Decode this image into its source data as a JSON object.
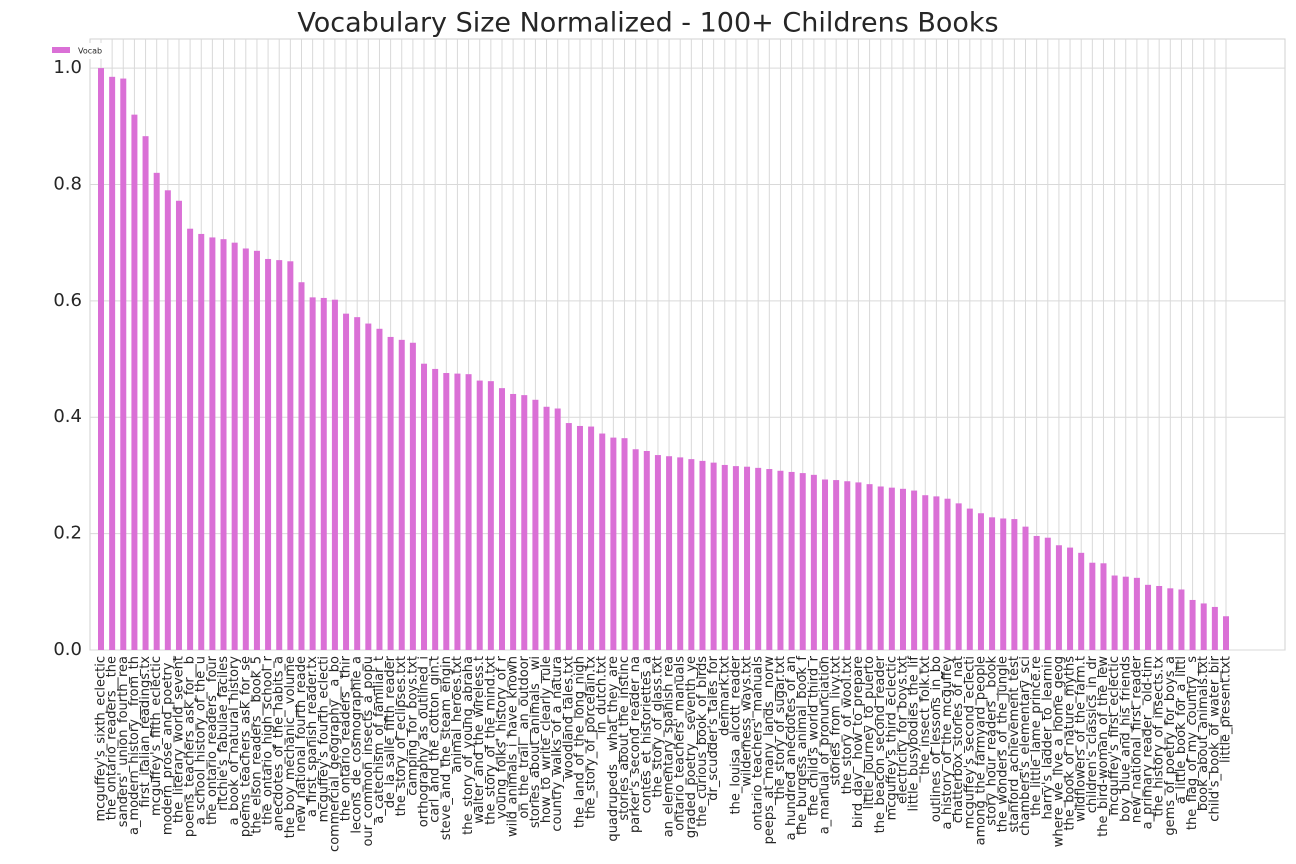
{
  "chart_data": {
    "type": "bar",
    "title": "Vocabulary Size Normalized - 100+ Childrens Books",
    "series": [
      {
        "name": "Vocab",
        "color": "#da70d6",
        "values": [
          1.0,
          0.985,
          0.982,
          0.92,
          0.883,
          0.82,
          0.79,
          0.772,
          0.724,
          0.715,
          0.709,
          0.706,
          0.7,
          0.69,
          0.686,
          0.672,
          0.67,
          0.668,
          0.632,
          0.606,
          0.605,
          0.602,
          0.578,
          0.572,
          0.561,
          0.552,
          0.538,
          0.533,
          0.528,
          0.492,
          0.483,
          0.476,
          0.475,
          0.474,
          0.463,
          0.462,
          0.45,
          0.44,
          0.438,
          0.43,
          0.418,
          0.415,
          0.39,
          0.385,
          0.384,
          0.372,
          0.365,
          0.364,
          0.345,
          0.342,
          0.335,
          0.333,
          0.331,
          0.328,
          0.325,
          0.322,
          0.318,
          0.316,
          0.315,
          0.313,
          0.311,
          0.308,
          0.306,
          0.304,
          0.301,
          0.293,
          0.292,
          0.29,
          0.288,
          0.285,
          0.281,
          0.279,
          0.277,
          0.274,
          0.266,
          0.264,
          0.26,
          0.252,
          0.243,
          0.235,
          0.228,
          0.226,
          0.225,
          0.212,
          0.196,
          0.193,
          0.18,
          0.176,
          0.167,
          0.15,
          0.149,
          0.128,
          0.126,
          0.124,
          0.112,
          0.11,
          0.106,
          0.104,
          0.086,
          0.08,
          0.074,
          0.058
        ]
      }
    ],
    "categories": [
      "mcguffey's_sixth_eclectic",
      "the_ontario_readers__the",
      "sanders'_union_fourth_rea",
      "a_modern_history__from_th",
      "first_italian_readings.tx",
      "mcguffey's_fifth_eclectic",
      "modern_prose_and_poetry_",
      "the_literary_world_sevent",
      "poems_teachers_ask_for__b",
      "a_school_history_of_the_u",
      "the_ontario_readers__four",
      "ritchie's_fabulae_faciles",
      "a_book_of_natural_history",
      "poems_teachers_ask_for_se",
      "the_elson_readers__book_5",
      "the_ontario_high_school_r",
      "anecdotes_of_the_habits_a",
      "the_boy_mechanic__volume",
      "new_national_fourth_reade",
      "a_first_spanish_reader.tx",
      "mcguffey's_fourth_eclecti",
      "commercial_geography__a_bo",
      "the_ontario_readers__thir",
      "lecons_de_cosmographie_a",
      "our_common_insects_a_popu",
      "a_catechism_of_familiar_t",
      "de_la_salle_fifth_reader",
      "the_story_of_eclipses.txt",
      "camping_for_boys.txt",
      "orthography_as_outlined_i",
      "carl_and_the_cotton_gin.t",
      "steve_and_the_steam_engin",
      "animal_heroes.txt",
      "the_story_of_young_abraha",
      "walter_and_the_wireless.t",
      "the_story_of_the_mind.txt",
      "young_folks'_history_of_r",
      "wild_animals_i_have_known",
      "on_the_trail__an_outdoor",
      "stories_about_animals__wi",
      "how_to_write_clearly_rule",
      "country_walks_of_a_natura",
      "woodland_tales.txt",
      "the_land_of_the_long_nigh",
      "the_story_of_porcelain.tx",
      "in_dutch.txt",
      "quadrupeds__what_they_are",
      "stories_about_the_instinc",
      "parker's_second_reader_na",
      "contes_et_historiettes_a",
      "the_story_of_glass.txt",
      "an_elementary_spanish_rea",
      "ontario_teachers'_manuals",
      "graded_poetry__seventh_ye",
      "the_curious_book_of_birds",
      "dr_scudder's_tales_for",
      "denmark.txt",
      "the_louisa_alcott_reader",
      "wilderness_ways.txt",
      "ontario_teachers'_manuals",
      "peeps_at_many_lands__norw",
      "the_story_of_sugar.txt",
      "a_hundred_anecdotes_of_an",
      "the_burgess_animal_book_f",
      "the_child's_world_third_r",
      "a_manual_of_pronunciation",
      "stories_from_livy.txt",
      "the_story_of_wool.txt",
      "bird_day__how_to_prepare",
      "little_journey_to_puerto",
      "the_beacon_second_reader",
      "mcguffey's_third_eclectic",
      "electricity_for_boys.txt",
      "little_busybodies_the_lif",
      "the_insect_folk.txt",
      "outlines_of_lessons_in_bo",
      "a_history_of_the_mcguffey",
      "chatterbox_stories_of_nat",
      "mcguffey's_second_eclecti",
      "among_the_farmyard_people",
      "story_hour_readers__book",
      "the_wonders_of_the_jungle",
      "stanford_achievement_test",
      "chambers's_elementary_sci",
      "the_little_lame_prince.re",
      "harry's_ladder_to_learnin",
      "where_we_live_a_home_geog",
      "the_book_of_nature_myths",
      "wildflowers_of_the_farm.t",
      "children's_classics_in_dr",
      "the_bird-woman_of_the_lew",
      "mcguffey's_first_eclectic",
      "boy_blue_and_his_friends",
      "new_national_first_reader",
      "a_primary_reader__old-tim",
      "the_history_of_insects.tx",
      "gems_of_poetry_for_boys_a",
      "a_little_book_for_a_littl",
      "the_flag_of_my_country__s",
      "book_about_animals.txt",
      "child's_book_of_water_bir",
      "little_present.txt"
    ],
    "ylim": [
      0,
      1.05
    ],
    "yticks": [
      {
        "value": 0,
        "label": "0.0"
      },
      0.2,
      0.4,
      0.6,
      0.8,
      {
        "value": 1,
        "label": "1.0"
      }
    ],
    "grid": true,
    "legend": "upper left"
  }
}
